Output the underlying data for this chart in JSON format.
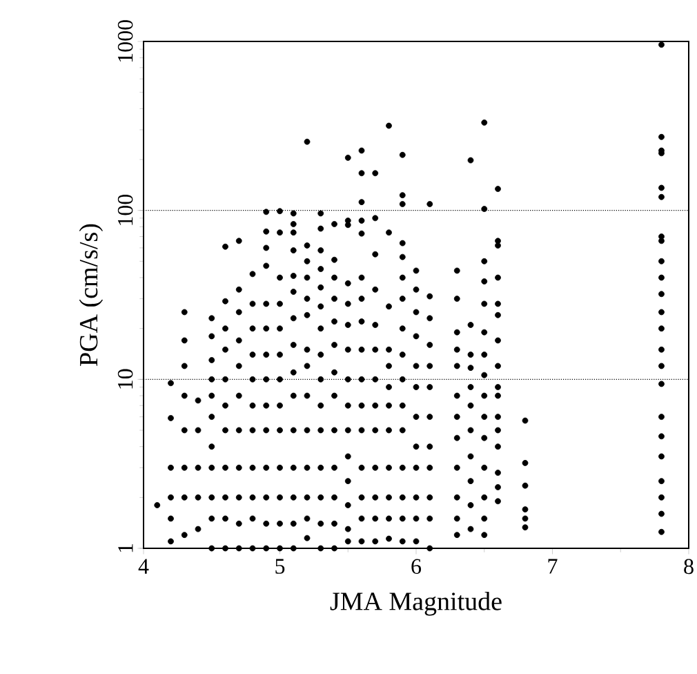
{
  "chart_data": {
    "type": "scatter",
    "xlabel": "JMA Magnitude",
    "ylabel": "PGA (cm/s/s)",
    "xlim": [
      4,
      8
    ],
    "ylim": [
      1,
      1000
    ],
    "xticks": [
      4,
      5,
      6,
      7,
      8
    ],
    "yticks": [
      1,
      10,
      100,
      1000
    ],
    "log": "y",
    "grid": "y",
    "marker": "circle",
    "series": [
      {
        "color": "#000000",
        "x": [
          4.1,
          4.2,
          4.2,
          4.2,
          4.2,
          4.2,
          4.2,
          4.3,
          4.3,
          4.3,
          4.3,
          4.3,
          4.3,
          4.3,
          4.3,
          4.4,
          4.4,
          4.4,
          4.4,
          4.4,
          4.5,
          4.5,
          4.5,
          4.5,
          4.5,
          4.5,
          4.5,
          4.5,
          4.5,
          4.5,
          4.5,
          4.6,
          4.6,
          4.6,
          4.6,
          4.6,
          4.6,
          4.6,
          4.6,
          4.6,
          4.6,
          4.6,
          4.7,
          4.7,
          4.7,
          4.7,
          4.7,
          4.7,
          4.7,
          4.7,
          4.7,
          4.7,
          4.7,
          4.8,
          4.8,
          4.8,
          4.8,
          4.8,
          4.8,
          4.8,
          4.8,
          4.8,
          4.8,
          4.8,
          4.9,
          4.9,
          4.9,
          4.9,
          4.9,
          4.9,
          4.9,
          4.9,
          4.9,
          4.9,
          4.9,
          4.9,
          4.9,
          4.9,
          5.0,
          5.0,
          5.0,
          5.0,
          5.0,
          5.0,
          5.0,
          5.0,
          5.0,
          5.0,
          5.0,
          5.0,
          5.0,
          5.1,
          5.1,
          5.1,
          5.1,
          5.1,
          5.1,
          5.1,
          5.1,
          5.1,
          5.1,
          5.1,
          5.1,
          5.1,
          5.1,
          5.1,
          5.2,
          5.2,
          5.2,
          5.2,
          5.2,
          5.2,
          5.2,
          5.2,
          5.2,
          5.2,
          5.2,
          5.2,
          5.2,
          5.2,
          5.3,
          5.3,
          5.3,
          5.3,
          5.3,
          5.3,
          5.3,
          5.3,
          5.3,
          5.3,
          5.3,
          5.3,
          5.3,
          5.3,
          5.3,
          5.4,
          5.4,
          5.4,
          5.4,
          5.4,
          5.4,
          5.4,
          5.4,
          5.4,
          5.4,
          5.4,
          5.4,
          5.4,
          5.5,
          5.5,
          5.5,
          5.5,
          5.5,
          5.5,
          5.5,
          5.5,
          5.5,
          5.5,
          5.5,
          5.5,
          5.5,
          5.5,
          5.5,
          5.6,
          5.6,
          5.6,
          5.6,
          5.6,
          5.6,
          5.6,
          5.6,
          5.6,
          5.6,
          5.6,
          5.6,
          5.6,
          5.6,
          5.6,
          5.6,
          5.7,
          5.7,
          5.7,
          5.7,
          5.7,
          5.7,
          5.7,
          5.7,
          5.7,
          5.7,
          5.7,
          5.7,
          5.7,
          5.8,
          5.8,
          5.8,
          5.8,
          5.8,
          5.8,
          5.8,
          5.8,
          5.8,
          5.8,
          5.8,
          5.8,
          5.9,
          5.9,
          5.9,
          5.9,
          5.9,
          5.9,
          5.9,
          5.9,
          5.9,
          5.9,
          5.9,
          5.9,
          5.9,
          5.9,
          5.9,
          5.9,
          6.0,
          6.0,
          6.0,
          6.0,
          6.0,
          6.0,
          6.0,
          6.0,
          6.0,
          6.0,
          6.0,
          6.0,
          6.1,
          6.1,
          6.1,
          6.1,
          6.1,
          6.1,
          6.1,
          6.1,
          6.1,
          6.1,
          6.1,
          6.1,
          6.3,
          6.3,
          6.3,
          6.3,
          6.3,
          6.3,
          6.3,
          6.3,
          6.3,
          6.3,
          6.3,
          6.3,
          6.4,
          6.4,
          6.4,
          6.4,
          6.4,
          6.4,
          6.4,
          6.4,
          6.4,
          6.4,
          6.4,
          6.5,
          6.5,
          6.5,
          6.5,
          6.5,
          6.5,
          6.5,
          6.5,
          6.5,
          6.5,
          6.5,
          6.5,
          6.5,
          6.5,
          6.5,
          6.6,
          6.6,
          6.6,
          6.6,
          6.6,
          6.6,
          6.6,
          6.6,
          6.6,
          6.6,
          6.6,
          6.6,
          6.6,
          6.6,
          6.6,
          6.6,
          6.8,
          6.8,
          6.8,
          6.8,
          6.8,
          6.8,
          7.8,
          7.8,
          7.8,
          7.8,
          7.8,
          7.8,
          7.8,
          7.8,
          7.8,
          7.8,
          7.8,
          7.8,
          7.8,
          7.8,
          7.8,
          7.8,
          7.8,
          7.8,
          7.8,
          7.8,
          7.8,
          7.8,
          7.8
        ],
        "values": [
          1.8,
          9.5,
          5.9,
          3,
          2,
          1.5,
          1.1,
          25,
          17,
          12,
          8,
          5,
          3,
          2,
          1.2,
          7.5,
          5,
          3,
          2,
          1.3,
          23,
          18,
          13,
          10,
          8,
          6,
          4,
          3,
          2,
          1.5,
          1,
          61,
          29,
          20,
          15,
          10,
          7,
          5,
          3,
          2,
          1.5,
          1,
          66,
          34,
          25,
          17,
          12,
          8,
          5,
          3,
          2,
          1.4,
          1,
          42,
          28,
          20,
          14,
          10,
          7,
          5,
          3,
          2,
          1.5,
          1,
          98,
          75,
          60,
          47,
          28,
          20,
          14,
          10,
          7,
          5,
          3,
          2,
          1.4,
          1,
          99,
          74,
          40,
          28,
          20,
          14,
          10,
          7,
          5,
          3,
          2,
          1.4,
          1,
          96,
          83,
          74,
          58,
          41,
          33,
          23,
          16,
          11,
          8,
          5,
          3,
          2,
          1.4,
          1,
          255,
          62,
          50,
          40,
          30,
          24,
          15,
          12,
          8,
          5,
          3,
          2,
          1.5,
          1.15,
          96,
          78,
          58,
          45,
          35,
          27,
          20,
          14,
          10,
          7,
          5,
          3,
          2,
          1.4,
          1,
          83,
          51,
          40,
          30,
          22,
          16,
          11,
          8,
          5,
          3,
          2,
          1.4,
          1,
          205,
          87,
          82,
          37,
          28,
          21,
          15,
          10,
          7,
          5,
          3.5,
          2.5,
          1.8,
          1.3,
          1.1,
          226,
          166,
          112,
          87,
          73,
          40,
          30,
          22,
          15,
          10,
          7,
          5,
          3,
          2,
          1.5,
          1.1,
          166,
          90,
          55,
          34,
          21,
          15,
          10,
          7,
          5,
          3,
          2,
          1.5,
          1.1,
          317,
          74,
          27,
          15,
          12,
          9,
          7,
          5,
          3,
          2,
          1.5,
          1.14,
          213,
          123,
          109,
          64,
          53,
          40,
          30,
          20,
          14,
          10,
          7,
          5,
          3,
          2,
          1.5,
          1.1,
          44,
          34,
          25,
          18,
          12,
          9,
          6,
          4,
          3,
          2,
          1.5,
          1.1,
          109,
          31,
          23,
          16,
          12,
          9,
          6,
          4,
          3,
          2,
          1.5,
          1,
          44,
          30,
          19,
          15,
          12,
          8,
          6,
          4.5,
          3,
          2,
          1.5,
          1.2,
          198,
          21,
          14,
          11.7,
          9,
          7,
          5,
          3.5,
          2.5,
          1.8,
          1.3,
          331,
          102,
          50,
          38,
          28,
          19,
          14,
          10.6,
          8,
          6,
          4.5,
          3,
          2,
          1.5,
          1.2,
          134,
          66,
          62,
          40,
          28,
          24,
          17,
          12,
          9,
          8,
          6,
          5,
          4,
          2.8,
          2.3,
          1.9,
          5.7,
          3.2,
          2.35,
          1.7,
          1.5,
          1.33,
          957,
          272,
          226,
          218,
          136,
          120,
          70,
          66,
          50,
          40,
          32,
          25,
          20,
          15,
          12,
          9.4,
          6,
          4.6,
          3.5,
          2.5,
          2,
          1.6,
          1.25
        ]
      }
    ]
  }
}
